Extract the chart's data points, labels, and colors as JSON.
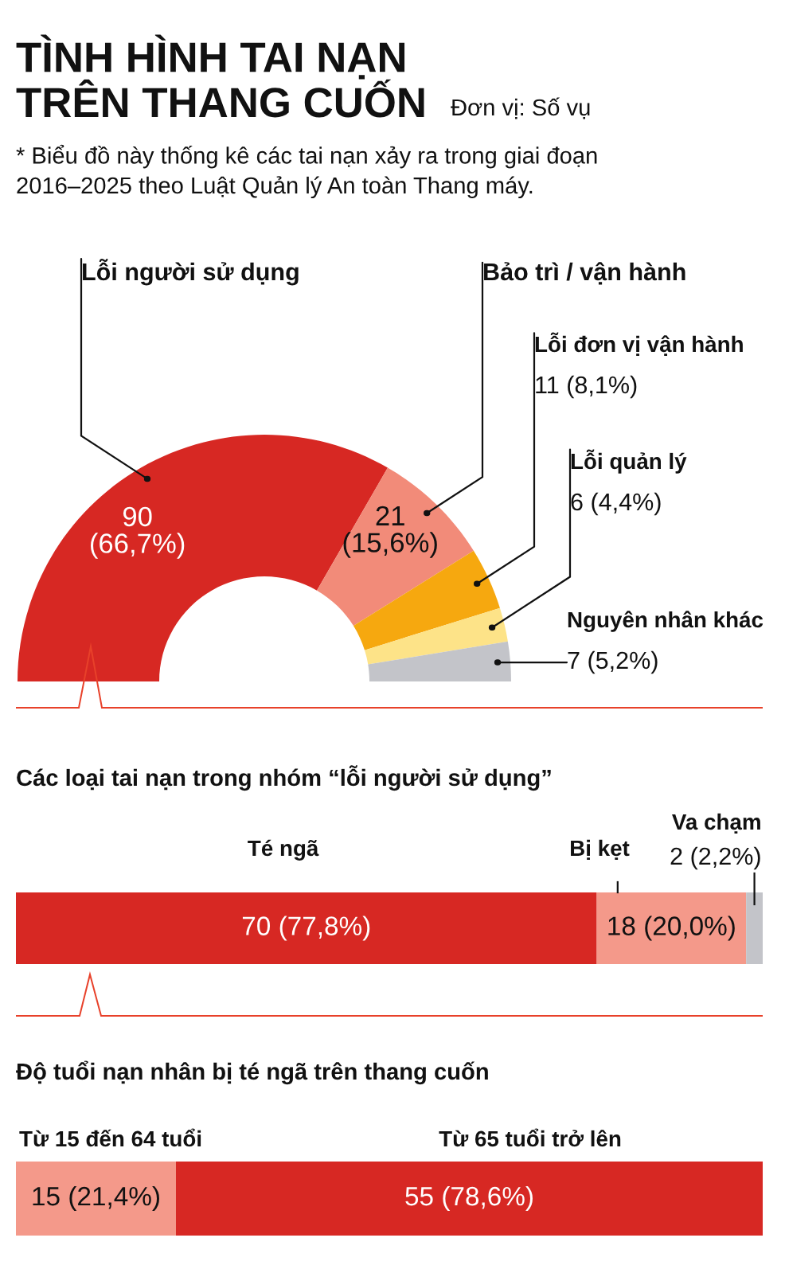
{
  "chart_data": [
    {
      "type": "donut",
      "title": "TÌNH HÌNH TAI NẠN\nTRÊN THANG CUỐN",
      "subtitle": "Đơn vị: Số vụ",
      "annotations": [
        "* Biểu đồ này thống kê các tai nạn xảy ra trong giai đoạn\n2016–2025 theo Luật Quản lý An toàn Thang máy."
      ],
      "categories": [
        "Lỗi người sử dụng",
        "Bảo trì / vận hành",
        "Lỗi đơn vị vận hành",
        "Lỗi quản lý",
        "Nguyên nhân khác"
      ],
      "values": [
        90,
        21,
        11,
        6,
        7
      ],
      "colors": [
        "#d72823",
        "#f28b79",
        "#f6a80f",
        "#fde388",
        "#c3c4c9"
      ],
      "value_labels": [
        "90 (66,7%)",
        "21 (15,6%)",
        "11 (8,1%)",
        "6 (4,4%)",
        "7 (5,2%)"
      ]
    },
    {
      "type": "bar",
      "title": "Các loại tai nạn trong nhóm “lỗi người sử dụng”",
      "orientation": "horizontal",
      "stacked": true,
      "categories": [
        null
      ],
      "xlim": [
        0,
        90
      ],
      "tick_labels": false,
      "series": [
        {
          "name": "Té ngã",
          "color": "#d72823",
          "values": [
            70
          ],
          "value_labels": [
            "70 (77,8%)"
          ]
        },
        {
          "name": "Bị kẹt",
          "color": "#f4998a",
          "values": [
            18
          ],
          "value_labels": [
            "18 (20,0%)"
          ]
        },
        {
          "name": "Va chạm",
          "color": "#c3c4c9",
          "values": [
            2
          ],
          "value_labels": [
            "2 (2,2%)"
          ]
        }
      ]
    },
    {
      "type": "bar",
      "title": "Độ tuổi nạn nhân bị té ngã trên thang cuốn",
      "orientation": "horizontal",
      "stacked": true,
      "categories": [
        null
      ],
      "xlim": [
        0,
        70
      ],
      "tick_labels": false,
      "series": [
        {
          "name": "Từ 15 đến 64 tuổi",
          "color": "#f4998a",
          "values": [
            15
          ],
          "value_labels": [
            "15 (21,4%)"
          ]
        },
        {
          "name": "Từ 65 tuổi trở lên",
          "color": "#d72823",
          "values": [
            55
          ],
          "value_labels": [
            "55 (78,6%)"
          ]
        }
      ]
    }
  ]
}
